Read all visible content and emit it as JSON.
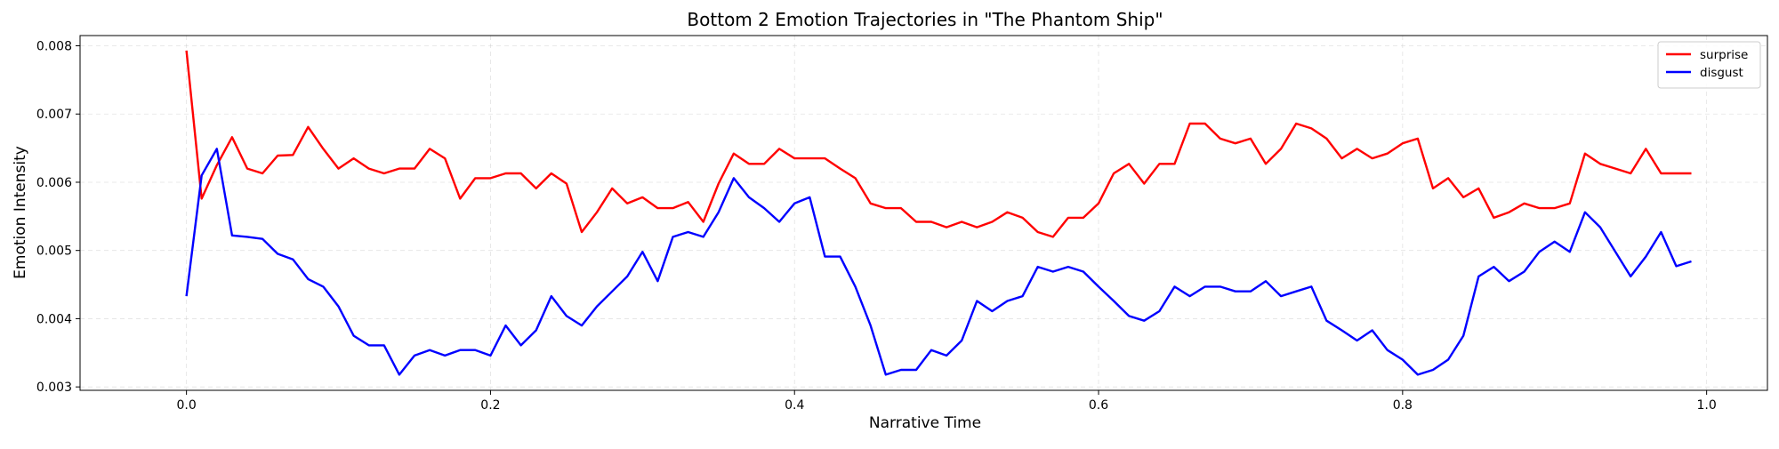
{
  "chart_data": {
    "type": "line",
    "title": "Bottom 2 Emotion Trajectories in \"The Phantom Ship\"",
    "xlabel": "Narrative Time",
    "ylabel": "Emotion Intensity",
    "xlim": [
      -0.07,
      1.04
    ],
    "ylim": [
      0.00295,
      0.00815
    ],
    "x_ticks": [
      0.0,
      0.2,
      0.4,
      0.6,
      0.8,
      1.0
    ],
    "x_tick_labels": [
      "0.0",
      "0.2",
      "0.4",
      "0.6",
      "0.8",
      "1.0"
    ],
    "y_ticks": [
      0.003,
      0.004,
      0.005,
      0.006,
      0.007,
      0.008
    ],
    "y_tick_labels": [
      "0.003",
      "0.004",
      "0.005",
      "0.006",
      "0.007",
      "0.008"
    ],
    "grid": true,
    "legend_position": "top-right",
    "x": [
      0.0,
      0.01,
      0.02,
      0.03,
      0.04,
      0.05,
      0.06,
      0.07,
      0.08,
      0.09,
      0.1,
      0.11,
      0.12,
      0.13,
      0.14,
      0.15,
      0.16,
      0.17,
      0.18,
      0.19,
      0.2,
      0.21,
      0.22,
      0.23,
      0.24,
      0.25,
      0.26,
      0.27,
      0.28,
      0.29,
      0.3,
      0.31,
      0.32,
      0.33,
      0.34,
      0.35,
      0.36,
      0.37,
      0.38,
      0.39,
      0.4,
      0.41,
      0.42,
      0.43,
      0.44,
      0.45,
      0.46,
      0.47,
      0.48,
      0.49,
      0.5,
      0.51,
      0.52,
      0.53,
      0.54,
      0.55,
      0.56,
      0.57,
      0.58,
      0.59,
      0.6,
      0.61,
      0.62,
      0.63,
      0.64,
      0.65,
      0.66,
      0.67,
      0.68,
      0.69,
      0.7,
      0.71,
      0.72,
      0.73,
      0.74,
      0.75,
      0.76,
      0.77,
      0.78,
      0.79,
      0.8,
      0.81,
      0.82,
      0.83,
      0.84,
      0.85,
      0.86,
      0.87,
      0.88,
      0.89,
      0.9,
      0.91,
      0.92,
      0.93,
      0.94,
      0.95,
      0.96,
      0.97,
      0.98,
      0.99
    ],
    "series": [
      {
        "name": "surprise",
        "color": "#ff0000",
        "values": [
          0.00793,
          0.00576,
          0.00625,
          0.00666,
          0.0062,
          0.00613,
          0.00639,
          0.0064,
          0.00681,
          0.00649,
          0.0062,
          0.00635,
          0.0062,
          0.00613,
          0.0062,
          0.0062,
          0.00649,
          0.00635,
          0.00576,
          0.00606,
          0.00606,
          0.00613,
          0.00613,
          0.00591,
          0.00613,
          0.00598,
          0.00527,
          0.00556,
          0.00591,
          0.00569,
          0.00578,
          0.00562,
          0.00562,
          0.00571,
          0.00542,
          0.00598,
          0.00642,
          0.00627,
          0.00627,
          0.00649,
          0.00635,
          0.00635,
          0.00635,
          0.0062,
          0.00606,
          0.00569,
          0.00562,
          0.00562,
          0.00542,
          0.00542,
          0.00534,
          0.00542,
          0.00534,
          0.00542,
          0.00556,
          0.00548,
          0.00527,
          0.0052,
          0.00548,
          0.00548,
          0.00569,
          0.00613,
          0.00627,
          0.00598,
          0.00627,
          0.00627,
          0.00686,
          0.00686,
          0.00664,
          0.00657,
          0.00664,
          0.00627,
          0.00649,
          0.00686,
          0.00679,
          0.00664,
          0.00635,
          0.00649,
          0.00635,
          0.00642,
          0.00657,
          0.00664,
          0.00591,
          0.00606,
          0.00578,
          0.00591,
          0.00548,
          0.00556,
          0.00569,
          0.00562,
          0.00562,
          0.00569,
          0.00642,
          0.00627,
          0.0062,
          0.00613,
          0.00649,
          0.00613,
          0.00613,
          0.00613
        ]
      },
      {
        "name": "disgust",
        "color": "#0000ff",
        "values": [
          0.00433,
          0.0061,
          0.00649,
          0.00522,
          0.0052,
          0.00517,
          0.00495,
          0.00487,
          0.00458,
          0.00447,
          0.00418,
          0.00375,
          0.00361,
          0.00361,
          0.00318,
          0.00346,
          0.00354,
          0.00346,
          0.00354,
          0.00354,
          0.00346,
          0.0039,
          0.00361,
          0.00383,
          0.00433,
          0.00404,
          0.0039,
          0.00418,
          0.0044,
          0.00462,
          0.00498,
          0.00455,
          0.0052,
          0.00527,
          0.0052,
          0.00556,
          0.00606,
          0.00578,
          0.00562,
          0.00542,
          0.00569,
          0.00578,
          0.00491,
          0.00491,
          0.00447,
          0.0039,
          0.00318,
          0.00325,
          0.00325,
          0.00354,
          0.00346,
          0.00368,
          0.00426,
          0.00411,
          0.00426,
          0.00433,
          0.00476,
          0.00469,
          0.00476,
          0.00469,
          0.00447,
          0.00426,
          0.00404,
          0.00397,
          0.00411,
          0.00447,
          0.00433,
          0.00447,
          0.00447,
          0.0044,
          0.0044,
          0.00455,
          0.00433,
          0.0044,
          0.00447,
          0.00397,
          0.00383,
          0.00368,
          0.00383,
          0.00354,
          0.0034,
          0.00318,
          0.00325,
          0.0034,
          0.00375,
          0.00462,
          0.00476,
          0.00455,
          0.00469,
          0.00498,
          0.00513,
          0.00498,
          0.00556,
          0.00534,
          0.00498,
          0.00462,
          0.00491,
          0.00527,
          0.00477,
          0.00484
        ]
      }
    ]
  }
}
